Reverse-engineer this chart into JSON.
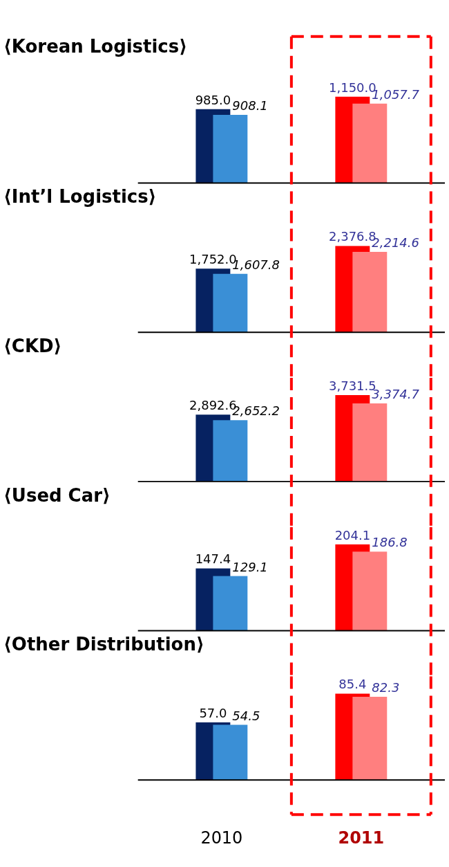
{
  "chart_data": [
    {
      "type": "bar",
      "title": "⟨Korean Logistics⟩",
      "categories": [
        "2010",
        "2011"
      ],
      "tick_labels": false,
      "grid": false,
      "series": [
        {
          "colors": [
            "#062261",
            "#ff0000"
          ],
          "values": [
            985.0,
            1150.0
          ],
          "value_labels": [
            "985.0",
            "1,150.0"
          ]
        },
        {
          "colors": [
            "#3a8fd6",
            "#ff7f7f"
          ],
          "values": [
            908.1,
            1057.7
          ],
          "value_labels": [
            "908.1",
            "1,057.7"
          ]
        }
      ],
      "legend": false
    },
    {
      "type": "bar",
      "title": "⟨Int’l Logistics⟩",
      "categories": [
        "2010",
        "2011"
      ],
      "tick_labels": false,
      "grid": false,
      "series": [
        {
          "colors": [
            "#062261",
            "#ff0000"
          ],
          "values": [
            1752.0,
            2376.8
          ],
          "value_labels": [
            "1,752.0",
            "2,376.8"
          ]
        },
        {
          "colors": [
            "#3a8fd6",
            "#ff7f7f"
          ],
          "values": [
            1607.8,
            2214.6
          ],
          "value_labels": [
            "1,607.8",
            "2,214.6"
          ]
        }
      ],
      "legend": false
    },
    {
      "type": "bar",
      "title": "⟨CKD⟩",
      "categories": [
        "2010",
        "2011"
      ],
      "tick_labels": false,
      "grid": false,
      "series": [
        {
          "colors": [
            "#062261",
            "#ff0000"
          ],
          "values": [
            2892.6,
            3731.5
          ],
          "value_labels": [
            "2,892.6",
            "3,731.5"
          ]
        },
        {
          "colors": [
            "#3a8fd6",
            "#ff7f7f"
          ],
          "values": [
            2652.2,
            3374.7
          ],
          "value_labels": [
            "2,652.2",
            "3,374.7"
          ]
        }
      ],
      "legend": false
    },
    {
      "type": "bar",
      "title": "⟨Used Car⟩",
      "categories": [
        "2010",
        "2011"
      ],
      "tick_labels": false,
      "grid": false,
      "series": [
        {
          "colors": [
            "#062261",
            "#ff0000"
          ],
          "values": [
            147.4,
            204.1
          ],
          "value_labels": [
            "147.4",
            "204.1"
          ]
        },
        {
          "colors": [
            "#3a8fd6",
            "#ff7f7f"
          ],
          "values": [
            129.1,
            186.8
          ],
          "value_labels": [
            "129.1",
            "186.8"
          ]
        }
      ],
      "legend": false
    },
    {
      "type": "bar",
      "title": "⟨Other Distribution⟩",
      "categories": [
        "2010",
        "2011"
      ],
      "tick_labels": "x",
      "grid": false,
      "series": [
        {
          "colors": [
            "#062261",
            "#ff0000"
          ],
          "values": [
            57.0,
            85.4
          ],
          "value_labels": [
            "57.0",
            "85.4"
          ]
        },
        {
          "colors": [
            "#3a8fd6",
            "#ff7f7f"
          ],
          "values": [
            54.5,
            82.3
          ],
          "value_labels": [
            "54.5",
            "82.3"
          ]
        }
      ],
      "legend": false
    }
  ]
}
